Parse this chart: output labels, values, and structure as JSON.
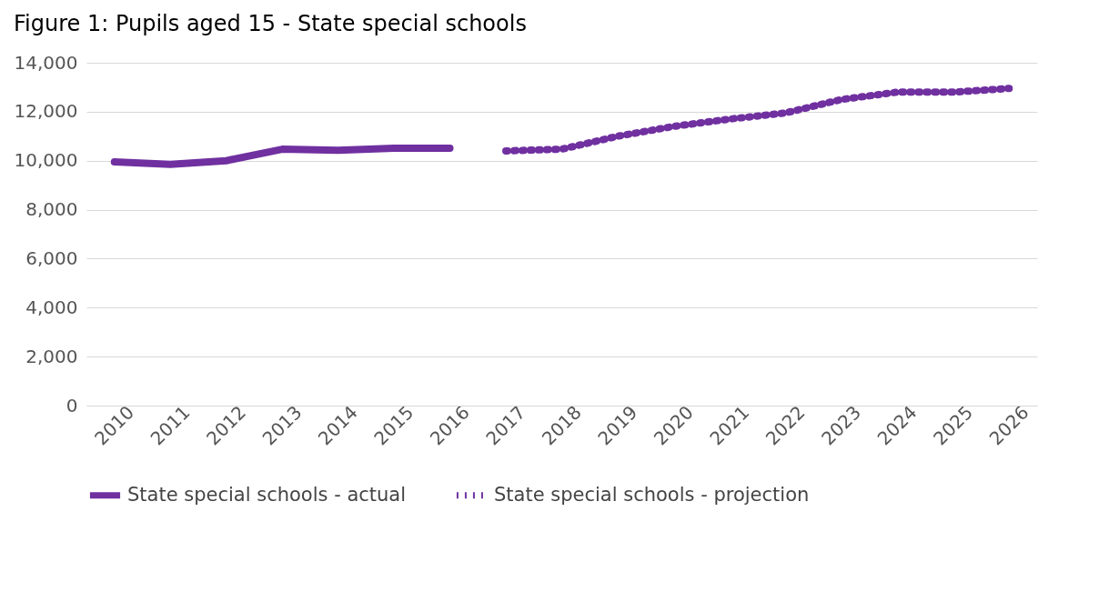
{
  "chart_data": {
    "type": "line",
    "title": "Figure 1: Pupils aged 15 - State special schools",
    "categories": [
      "2010",
      "2011",
      "2012",
      "2013",
      "2014",
      "2015",
      "2016",
      "2017",
      "2018",
      "2019",
      "2020",
      "2021",
      "2022",
      "2023",
      "2024",
      "2025",
      "2026"
    ],
    "series": [
      {
        "name": "State special schools - actual",
        "color": "#7030a0",
        "line_style": "solid",
        "values": [
          9950,
          9850,
          10000,
          10470,
          10430,
          10510,
          10510,
          null,
          null,
          null,
          null,
          null,
          null,
          null,
          null,
          null,
          null
        ]
      },
      {
        "name": "State special schools - projection",
        "color": "#7030a0",
        "line_style": "dotted",
        "values": [
          null,
          null,
          null,
          null,
          null,
          null,
          null,
          10400,
          10470,
          11000,
          11400,
          11700,
          11950,
          12500,
          12800,
          12800,
          12950
        ]
      }
    ],
    "ylim": [
      0,
      14000
    ],
    "yticks": [
      0,
      {
        "value": 2000,
        "label": "2,000"
      },
      {
        "value": 4000,
        "label": "4,000"
      },
      {
        "value": 6000,
        "label": "6,000"
      },
      {
        "value": 8000,
        "label": "8,000"
      },
      {
        "value": 10000,
        "label": "10,000"
      },
      {
        "value": 12000,
        "label": "12,000"
      },
      {
        "value": 14000,
        "label": "14,000"
      }
    ],
    "grid": "y",
    "legend": "bottom"
  }
}
